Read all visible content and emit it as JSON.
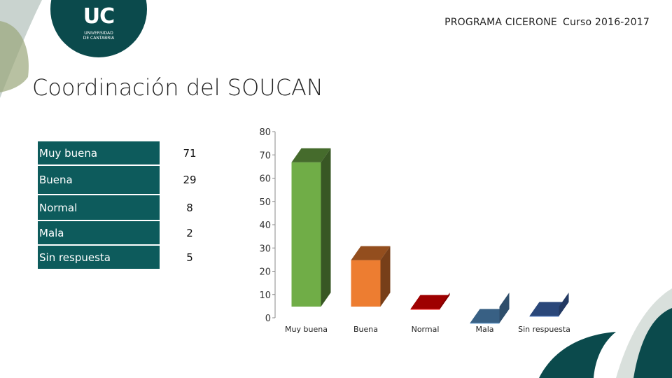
{
  "header": {
    "program": "PROGRAMA CICERONE",
    "course": "Curso 2016-2017"
  },
  "logo": {
    "text": "UC",
    "subtitle": "UNIVERSIDAD DE CANTABRIA",
    "color": "#0b4a4c"
  },
  "slide": {
    "title": "Coordinación del SOUCAN"
  },
  "table": {
    "rows": [
      {
        "label": "Muy buena",
        "value": "71"
      },
      {
        "label": "Buena",
        "value": "29"
      },
      {
        "label": "Normal",
        "value": "8"
      },
      {
        "label": "Mala",
        "value": "2"
      },
      {
        "label": "Sin respuesta",
        "value": "5"
      }
    ],
    "header_color": "#0d5b5c"
  },
  "chart_data": {
    "type": "bar",
    "style": "3d",
    "categories": [
      "Muy buena",
      "Buena",
      "Normal",
      "Mala",
      "Sin respuesta"
    ],
    "values": [
      71,
      29,
      8,
      2,
      5
    ],
    "colors": [
      "#70ad47",
      "#ed7d31",
      "#ff0000",
      "#5b9bd5",
      "#4472c4"
    ],
    "ylim": [
      0,
      80
    ],
    "yticks": [
      0,
      10,
      20,
      30,
      40,
      50,
      60,
      70,
      80
    ],
    "title": "",
    "xlabel": "",
    "ylabel": "",
    "grid": false,
    "legend": "none"
  }
}
